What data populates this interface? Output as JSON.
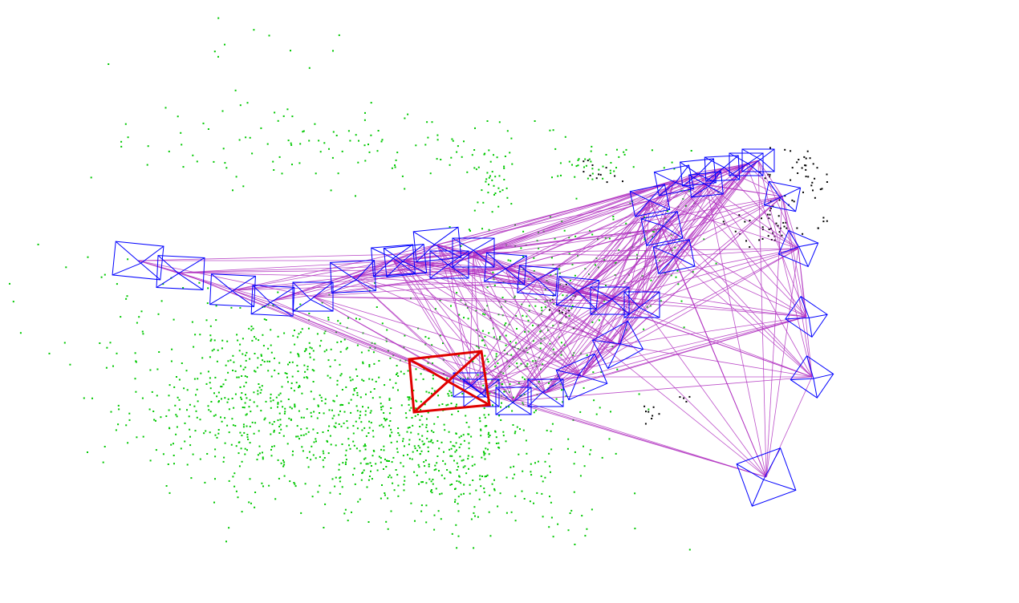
{
  "viewer": {
    "background": "#ffffff",
    "colors": {
      "map_point_active": "#00c800",
      "map_point_other": "#000000",
      "keyframe": "#0000ff",
      "current_camera": "#e00000",
      "covisibility_edge": "#b030c0"
    },
    "icons": [
      "keyframe-frustum-icon",
      "current-camera-icon"
    ]
  }
}
